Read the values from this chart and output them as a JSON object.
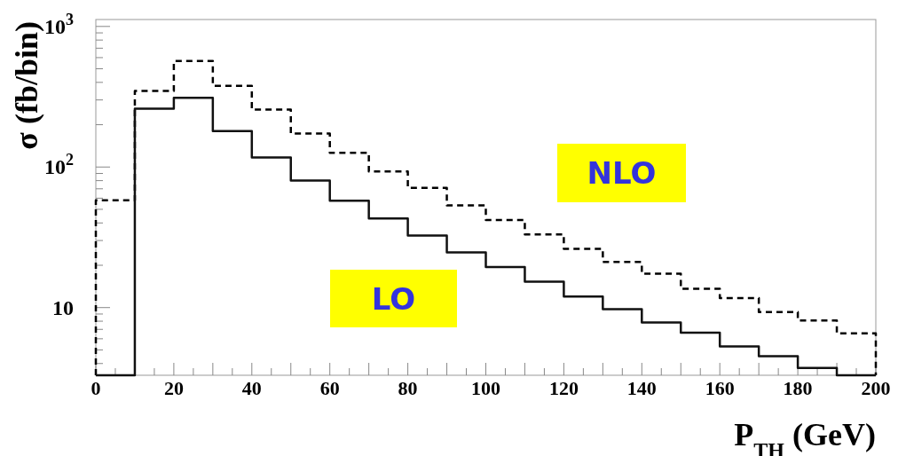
{
  "chart_data": {
    "type": "histogram",
    "xlabel": "P$_{TH}$ (GeV)",
    "ylabel": "σ (fb/bin)",
    "bins": [
      0,
      10,
      20,
      30,
      40,
      50,
      60,
      70,
      80,
      90,
      100,
      110,
      120,
      130,
      140,
      150,
      160,
      170,
      180,
      190,
      200
    ],
    "series": [
      {
        "color": "#000000",
        "line_style": "dashed",
        "values": [
          58,
          348,
          567,
          378,
          256,
          173,
          126,
          93,
          71,
          53.3,
          42,
          33.2,
          26.2,
          21.1,
          17.4,
          13.6,
          11.7,
          9.3,
          8.1,
          6.55
        ]
      },
      {
        "color": "#111111",
        "line_style": "solid",
        "values": [
          null,
          260,
          311,
          180,
          117,
          80,
          57.5,
          43,
          32.5,
          24.7,
          19.4,
          15.3,
          12.0,
          9.75,
          7.83,
          6.62,
          5.29,
          4.51,
          3.72,
          null
        ]
      }
    ],
    "log": "y",
    "grid": false,
    "annotations": [
      "NLO",
      "LO"
    ],
    "xlim": [
      0,
      200
    ],
    "xticks": [
      0,
      {
        "value": 5,
        "label": null
      },
      {
        "value": 10,
        "label": null
      },
      {
        "value": 15,
        "label": null
      },
      20,
      {
        "value": 25,
        "label": null
      },
      {
        "value": 30,
        "label": null
      },
      {
        "value": 35,
        "label": null
      },
      40,
      {
        "value": 45,
        "label": null
      },
      {
        "value": 50,
        "label": null
      },
      {
        "value": 55,
        "label": null
      },
      60,
      {
        "value": 65,
        "label": null
      },
      {
        "value": 70,
        "label": null
      },
      {
        "value": 75,
        "label": null
      },
      80,
      {
        "value": 85,
        "label": null
      },
      {
        "value": 90,
        "label": null
      },
      {
        "value": 95,
        "label": null
      },
      100,
      {
        "value": 105,
        "label": null
      },
      {
        "value": 110,
        "label": null
      },
      {
        "value": 115,
        "label": null
      },
      120,
      {
        "value": 125,
        "label": null
      },
      {
        "value": 130,
        "label": null
      },
      {
        "value": 135,
        "label": null
      },
      140,
      {
        "value": 145,
        "label": null
      },
      {
        "value": 150,
        "label": null
      },
      {
        "value": 155,
        "label": null
      },
      160,
      {
        "value": 165,
        "label": null
      },
      {
        "value": 170,
        "label": null
      },
      {
        "value": 175,
        "label": null
      },
      180,
      {
        "value": 185,
        "label": null
      },
      {
        "value": 190,
        "label": null
      },
      {
        "value": 195,
        "label": null
      },
      200
    ],
    "ylim": [
      3.3,
      1120
    ],
    "yticks": [
      {
        "value": 4,
        "label": null
      },
      {
        "value": 5,
        "label": null
      },
      {
        "value": 6,
        "label": null
      },
      {
        "value": 7,
        "label": null
      },
      {
        "value": 8,
        "label": null
      },
      {
        "value": 9,
        "label": null
      },
      10,
      {
        "value": 20,
        "label": null
      },
      {
        "value": 30,
        "label": null
      },
      {
        "value": 40,
        "label": null
      },
      {
        "value": 50,
        "label": null
      },
      {
        "value": 60,
        "label": null
      },
      {
        "value": 70,
        "label": null
      },
      {
        "value": 80,
        "label": null
      },
      {
        "value": 90,
        "label": null
      },
      {
        "value": 100,
        "label": "10$^{2}$"
      },
      {
        "value": 200,
        "label": null
      },
      {
        "value": 300,
        "label": null
      },
      {
        "value": 400,
        "label": null
      },
      {
        "value": 500,
        "label": null
      },
      {
        "value": 600,
        "label": null
      },
      {
        "value": 700,
        "label": null
      },
      {
        "value": 800,
        "label": null
      },
      {
        "value": 900,
        "label": null
      },
      {
        "value": 1000,
        "label": "10$^{3}$"
      }
    ]
  }
}
